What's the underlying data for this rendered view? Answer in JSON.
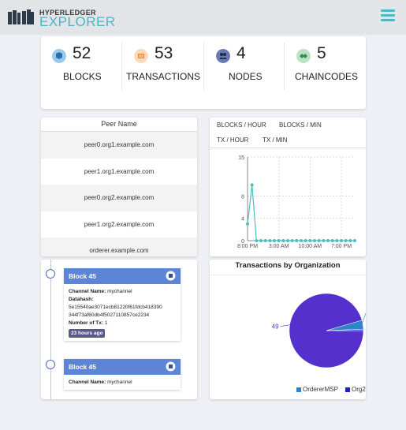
{
  "header": {
    "brand_top": "HYPERLEDGER",
    "brand_main": "EXPLORER"
  },
  "stats": [
    {
      "value": "52",
      "label": "BLOCKS",
      "icon": "cube-icon",
      "color": "#5b9bd5"
    },
    {
      "value": "53",
      "label": "TRANSACTIONS",
      "icon": "receipt-icon",
      "color": "#f0a060"
    },
    {
      "value": "4",
      "label": "NODES",
      "icon": "users-icon",
      "color": "#3a4a7a"
    },
    {
      "value": "5",
      "label": "CHAINCODES",
      "icon": "handshake-icon",
      "color": "#3aa055"
    }
  ],
  "peers": {
    "header": "Peer Name",
    "rows": [
      "peer0.org1.example.com",
      "peer1.org1.example.com",
      "peer0.org2.example.com",
      "peer1.org2.example.com",
      "orderer.example.com"
    ]
  },
  "metrics": {
    "tabs": [
      "BLOCKS / HOUR",
      "BLOCKS / MIN",
      "TX / HOUR",
      "TX / MIN"
    ],
    "active_tab": "BLOCKS / HOUR"
  },
  "chart_data": [
    {
      "type": "line",
      "title": "",
      "xlabel": "",
      "ylabel": "",
      "ylim": [
        0,
        15
      ],
      "yticks": [
        "0",
        "4",
        "8",
        "15"
      ],
      "xticks": [
        "8:00 PM",
        "3:00 AM",
        "10:00 AM",
        "7:00 PM"
      ],
      "x_tick_index": [
        0,
        7,
        14,
        21
      ],
      "grid": true,
      "color": "#4bbfbf",
      "values": [
        3,
        10,
        0,
        0,
        0,
        0,
        0,
        0,
        0,
        0,
        0,
        0,
        0,
        0,
        0,
        0,
        0,
        0,
        0,
        0,
        0,
        0,
        0,
        0,
        0
      ]
    },
    {
      "type": "pie",
      "title": "Transactions by Organization",
      "slices": [
        {
          "name": "Org2",
          "value": 49,
          "color": "#5530cc"
        },
        {
          "name": "OrdererMSP",
          "value": 2,
          "color": "#2b86c8"
        },
        {
          "name": "",
          "value": 0.3,
          "color": "#2a2ad0"
        }
      ],
      "slice_label": "49",
      "legend": [
        "OrdererMSP",
        "Org2"
      ],
      "legend_position": "bottom"
    }
  ],
  "blocks": [
    {
      "title": "Block 45",
      "channel_label": "Channel Name:",
      "channel": "mychannel",
      "datahash_label": "Datahash:",
      "datahash_1": "5e15540ae3071ecb81220f61fdcb418390",
      "datahash_2": "344f73af60db4f5027110857ce2234",
      "tx_label": "Number of Tx:",
      "tx": "1",
      "age": "23 hours ago"
    },
    {
      "title": "Block 45",
      "channel_label": "Channel Name:",
      "channel": "mychannel"
    }
  ]
}
